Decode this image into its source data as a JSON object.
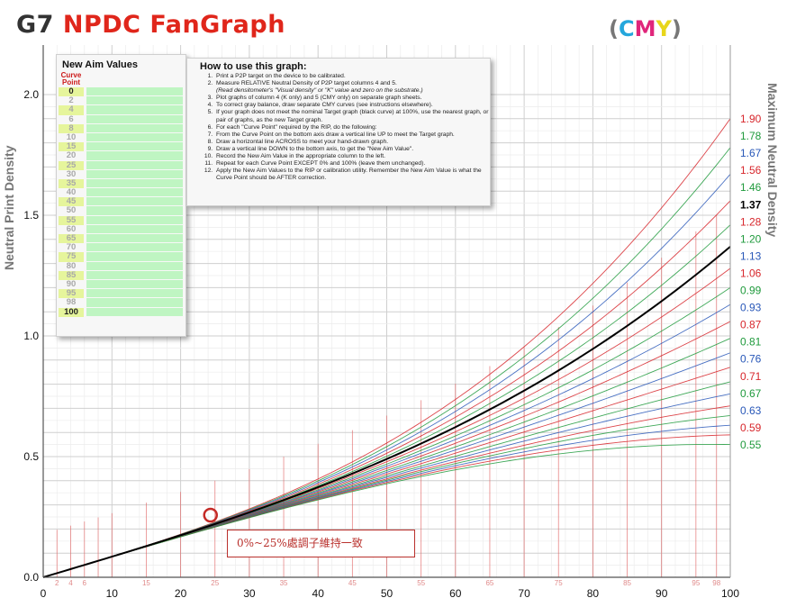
{
  "header": {
    "title_g7": "G7",
    "title_rest": "NPDC FanGraph",
    "cmy_open": "(",
    "cmy_c": "C",
    "cmy_m": "M",
    "cmy_y": "Y",
    "cmy_close": ")"
  },
  "aim_table": {
    "title": "New Aim Values",
    "col_header": "Curve Point",
    "points": [
      "0",
      "2",
      "4",
      "6",
      "8",
      "10",
      "15",
      "20",
      "25",
      "30",
      "35",
      "40",
      "45",
      "50",
      "55",
      "60",
      "65",
      "70",
      "75",
      "80",
      "85",
      "90",
      "95",
      "98",
      "100"
    ]
  },
  "instructions": {
    "title": "How to use this graph:",
    "steps": [
      "Print a P2P target on the device to be calibrated.",
      "Measure RELATIVE Neutral Density of P2P target columns 4 and 5.",
      "Plot graphs of column 4 (K only) and 5 (CMY only) on separate graph sheets.",
      "To correct gray balance, draw separate CMY curves (see instructions elsewhere).",
      "If your graph does not meet the nominal Target graph (black curve) at 100%, use the nearest graph, or pair of graphs, as the new Target graph.",
      "For each \"Curve Point\" required by the RIP, do the following:",
      "From the Curve Point on the bottom axis draw a vertical line UP to meet the Target graph.",
      "Draw a horizontal line ACROSS to meet your hand-drawn graph.",
      "Draw a vertical line DOWN to the bottom axis, to get the \"New Aim Value\".",
      "Record the New Aim Value in the appropriate column to the left.",
      "Repeat for each Curve Point EXCEPT 0% and 100% (leave them unchanged).",
      "Apply the New Aim Values to the RIP or calibration utility. Remember the New Aim Value is what the Curve Point should be AFTER correction."
    ],
    "step2_sub": "(Read densitometer's \"Visual density\" or \"K\" value and zero on the substrate.)"
  },
  "axis_titles": {
    "left": "Neutral Print Density",
    "right": "Maximum Neutral Density"
  },
  "annotation": {
    "text": "0%~25%處調子維持一致"
  },
  "colors": {
    "red": "#d7262b",
    "green": "#1f9a3c",
    "blue": "#2857b8",
    "black": "#000000",
    "grid": "#d6d6d6"
  },
  "chart_data": {
    "type": "line",
    "xlim": [
      0,
      100
    ],
    "ylim": [
      0,
      2.0
    ],
    "x_ticks": [
      0,
      10,
      20,
      30,
      40,
      50,
      60,
      70,
      80,
      90,
      100
    ],
    "x_minor_ticks": [
      2,
      4,
      6,
      15,
      25,
      35,
      45,
      55,
      65,
      75,
      85,
      95,
      98
    ],
    "y_ticks": [
      0.0,
      0.5,
      1.0,
      1.5,
      2.0
    ],
    "y_tick_labels": [
      "0.0",
      "0.5",
      "1.0",
      "1.5",
      "2.0"
    ],
    "target_series": {
      "name": "1.37",
      "end_value": 1.37,
      "color": "black"
    },
    "fan_series": [
      {
        "label": "1.90",
        "end_value": 1.9,
        "color": "red"
      },
      {
        "label": "1.78",
        "end_value": 1.78,
        "color": "green"
      },
      {
        "label": "1.67",
        "end_value": 1.67,
        "color": "blue"
      },
      {
        "label": "1.56",
        "end_value": 1.56,
        "color": "red"
      },
      {
        "label": "1.46",
        "end_value": 1.46,
        "color": "green"
      },
      {
        "label": "1.37",
        "end_value": 1.37,
        "color": "black"
      },
      {
        "label": "1.28",
        "end_value": 1.28,
        "color": "red"
      },
      {
        "label": "1.20",
        "end_value": 1.2,
        "color": "green"
      },
      {
        "label": "1.13",
        "end_value": 1.13,
        "color": "blue"
      },
      {
        "label": "1.06",
        "end_value": 1.06,
        "color": "red"
      },
      {
        "label": "0.99",
        "end_value": 0.99,
        "color": "green"
      },
      {
        "label": "0.93",
        "end_value": 0.93,
        "color": "blue"
      },
      {
        "label": "0.87",
        "end_value": 0.87,
        "color": "red"
      },
      {
        "label": "0.81",
        "end_value": 0.81,
        "color": "green"
      },
      {
        "label": "0.76",
        "end_value": 0.76,
        "color": "blue"
      },
      {
        "label": "0.71",
        "end_value": 0.71,
        "color": "red"
      },
      {
        "label": "0.67",
        "end_value": 0.67,
        "color": "green"
      },
      {
        "label": "0.63",
        "end_value": 0.63,
        "color": "blue"
      },
      {
        "label": "0.59",
        "end_value": 0.59,
        "color": "red"
      },
      {
        "label": "0.55",
        "end_value": 0.55,
        "color": "green"
      }
    ],
    "target_curve_samples": [
      {
        "x": 0,
        "y": 0.0
      },
      {
        "x": 10,
        "y": 0.1
      },
      {
        "x": 20,
        "y": 0.21
      },
      {
        "x": 25,
        "y": 0.25
      },
      {
        "x": 30,
        "y": 0.31
      },
      {
        "x": 40,
        "y": 0.42
      },
      {
        "x": 50,
        "y": 0.53
      },
      {
        "x": 60,
        "y": 0.66
      },
      {
        "x": 70,
        "y": 0.82
      },
      {
        "x": 80,
        "y": 1.0
      },
      {
        "x": 90,
        "y": 1.19
      },
      {
        "x": 100,
        "y": 1.37
      }
    ],
    "highlight_point": {
      "x": 25,
      "y": 0.25
    }
  }
}
